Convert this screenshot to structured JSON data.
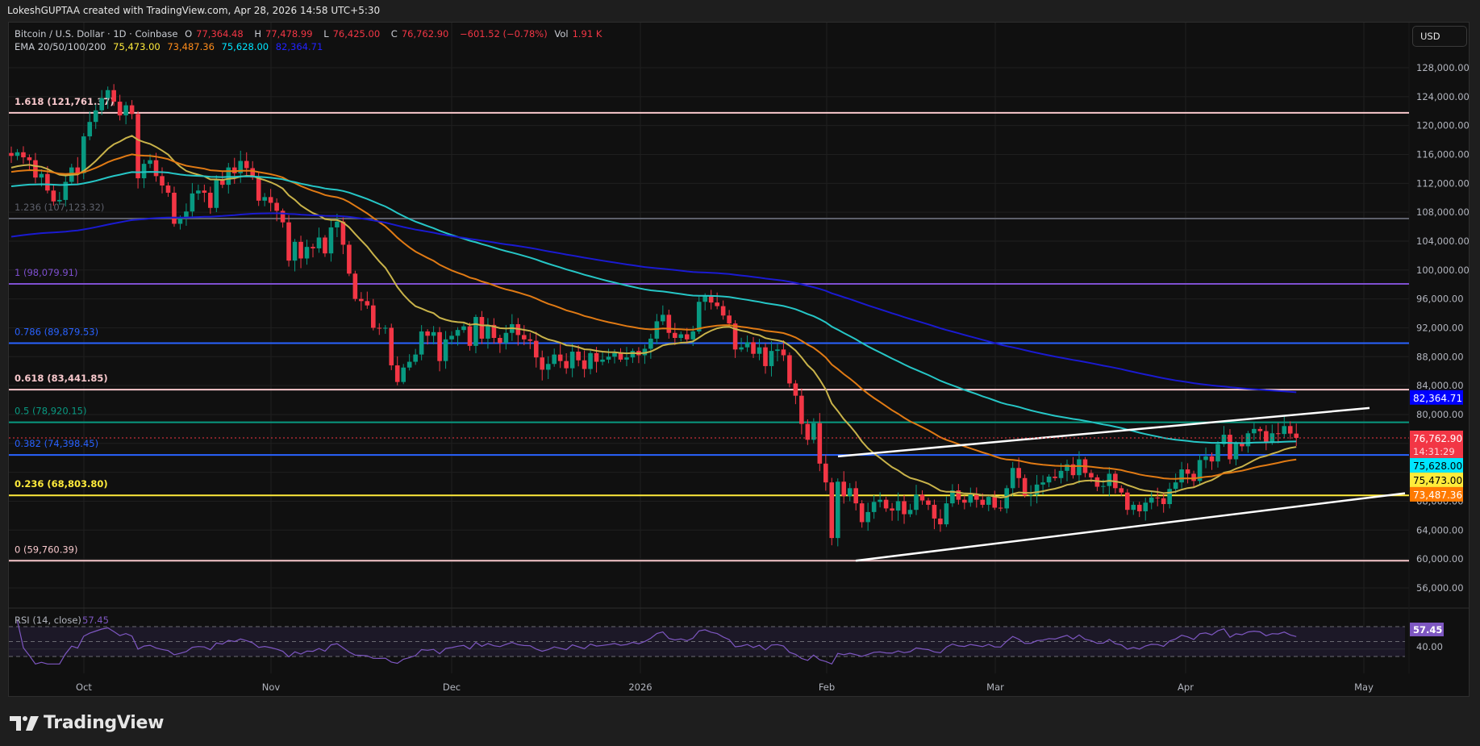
{
  "caption": "LokeshGUPTAA created with TradingView.com, Apr 28, 2026 14:58 UTC+5:30",
  "legend": {
    "symbol": "Bitcoin / U.S. Dollar · 1D · Coinbase",
    "o_label": "O",
    "o": "77,364.48",
    "h_label": "H",
    "h": "77,478.99",
    "l_label": "L",
    "l": "76,425.00",
    "c_label": "C",
    "c": "76,762.90",
    "change": "−601.52 (−0.78%)",
    "vol_label": "Vol",
    "vol": "1.91 K",
    "ema_label": "EMA 20/50/100/200",
    "ema20": "75,473.00",
    "ema50": "73,487.36",
    "ema100": "75,628.00",
    "ema200": "82,364.71"
  },
  "currency_button": "USD",
  "rsi_legend": {
    "label": "RSI (14, close)",
    "value": "57.45"
  },
  "footer": {
    "brand": "TradingView"
  },
  "colors": {
    "up": "#089981",
    "down": "#f23645",
    "ema20": "#c9b34a",
    "ema50": "#e07a14",
    "ema100": "#26c6c6",
    "ema200": "#1a1ad0",
    "rsi": "#7e57c2"
  },
  "chart_data": {
    "type": "candlestick",
    "title": "Bitcoin / U.S. Dollar · 1D · Coinbase",
    "x_axis_labels": [
      "Oct",
      "Nov",
      "Dec",
      "2026",
      "Feb",
      "Mar",
      "Apr",
      "May"
    ],
    "y_axis_labels": [
      "128,000.00",
      "124,000.00",
      "120,000.00",
      "116,000.00",
      "112,000.00",
      "108,000.00",
      "104,000.00",
      "100,000.00",
      "96,000.00",
      "92,000.00",
      "88,000.00",
      "84,000.00",
      "80,000.00",
      "76,000.00",
      "72,000.00",
      "68,000.00",
      "64,000.00",
      "60,000.00",
      "56,000.00"
    ],
    "ylim": [
      54000,
      131000
    ],
    "fib_levels": [
      {
        "label": "1.618 (121,761.37)",
        "value": 121761.37,
        "color": "#f8c8cc"
      },
      {
        "label": "1.236 (107,123.32)",
        "value": 107123.32,
        "color": "#5d606b"
      },
      {
        "label": "1 (98,079.91)",
        "value": 98079.91,
        "color": "#7e4fd0"
      },
      {
        "label": "0.786 (89,879.53)",
        "value": 89879.53,
        "color": "#2962ff"
      },
      {
        "label": "0.618 (83,441.85)",
        "value": 83441.85,
        "color": "#f8c8cc"
      },
      {
        "label": "0.5 (78,920.15)",
        "value": 78920.15,
        "color": "#089981"
      },
      {
        "label": "0.382 (74,398.45)",
        "value": 74398.45,
        "color": "#2962ff"
      },
      {
        "label": "0.236 (68,803.80)",
        "value": 68803.8,
        "color": "#ffeb3b"
      },
      {
        "label": "0 (59,760.39)",
        "value": 59760.39,
        "color": "#f8c8cc"
      }
    ],
    "price_tags": [
      {
        "text": "82,364.71",
        "value": 82364.71,
        "bg": "#0000ff",
        "fg": "#ffffff"
      },
      {
        "text": "76,762.90",
        "sub": "14:31:29",
        "value": 76762.9,
        "bg": "#f23645",
        "fg": "#ffffff"
      },
      {
        "text": "75,628.00",
        "value": 75628.0,
        "bg": "#00e5ff",
        "fg": "#000000"
      },
      {
        "text": "75,473.00",
        "value": 75473.0,
        "bg": "#ffeb3b",
        "fg": "#000000"
      },
      {
        "text": "73,487.36",
        "value": 73487.36,
        "bg": "#ff7a00",
        "fg": "#ffffff"
      }
    ],
    "ema_last": {
      "ema20": 75473.0,
      "ema50": 73487.36,
      "ema100": 75628.0,
      "ema200": 82364.71
    },
    "last_close": 76762.9,
    "channel_lines": [
      {
        "from": [
          "2026-02-03",
          74500
        ],
        "to": [
          "2026-04-30",
          81400
        ]
      },
      {
        "from": [
          "2026-02-06",
          59760
        ],
        "to": [
          "2026-05-05",
          68900
        ]
      }
    ],
    "rsi": {
      "period": 14,
      "last": 57.45,
      "levels": [
        70,
        50,
        30
      ],
      "axis_label": "40.00"
    },
    "closes_start_date": "2025-09-19",
    "closes": [
      115800,
      116300,
      115600,
      115200,
      112800,
      113300,
      111000,
      109500,
      109700,
      112200,
      114200,
      113400,
      118500,
      120500,
      122100,
      123800,
      124900,
      123300,
      121400,
      122800,
      121600,
      112700,
      114700,
      115200,
      113000,
      111700,
      110700,
      106400,
      107200,
      108100,
      110600,
      111000,
      110700,
      108600,
      112500,
      111800,
      114200,
      113400,
      115100,
      114100,
      112800,
      109600,
      110100,
      109300,
      108200,
      106600,
      101300,
      103900,
      101600,
      103200,
      103000,
      104500,
      102300,
      105900,
      106700,
      103500,
      99500,
      96000,
      95700,
      95100,
      92000,
      91900,
      92000,
      86800,
      84500,
      86500,
      87300,
      88300,
      91500,
      90900,
      91400,
      87400,
      90400,
      90900,
      91700,
      92200,
      89500,
      93500,
      90500,
      92400,
      90600,
      89900,
      91300,
      92500,
      91000,
      90400,
      90200,
      87900,
      86200,
      87000,
      88300,
      87400,
      86400,
      88700,
      87500,
      86300,
      88500,
      87300,
      87600,
      88000,
      88500,
      87600,
      87900,
      88800,
      88200,
      89100,
      90500,
      92900,
      93800,
      91300,
      90600,
      91100,
      90400,
      91500,
      95600,
      96400,
      95500,
      95000,
      93700,
      92600,
      89000,
      89300,
      90000,
      88400,
      89300,
      86700,
      88800,
      89000,
      88200,
      84300,
      82600,
      78700,
      76500,
      78800,
      73200,
      70600,
      62900,
      70700,
      68700,
      69800,
      67700,
      65100,
      66500,
      67900,
      68200,
      67000,
      66700,
      68000,
      66200,
      66800,
      68900,
      68100,
      67500,
      65600,
      64800,
      67700,
      69500,
      68200,
      67800,
      68900,
      68200,
      67500,
      68600,
      67100,
      67000,
      69800,
      72600,
      71200,
      68800,
      68900,
      70300,
      70600,
      71400,
      71200,
      72200,
      73100,
      71600,
      73800,
      71900,
      71300,
      70000,
      70100,
      71800,
      69800,
      69200,
      66800,
      67500,
      66600,
      67800,
      68500,
      68400,
      67600,
      69700,
      70600,
      72400,
      71800,
      70800,
      73700,
      74200,
      73500,
      75900,
      77200,
      73800,
      76000,
      75600,
      77400,
      78000,
      77700,
      76200,
      77400,
      77300,
      78400,
      77360,
      76762
    ]
  }
}
